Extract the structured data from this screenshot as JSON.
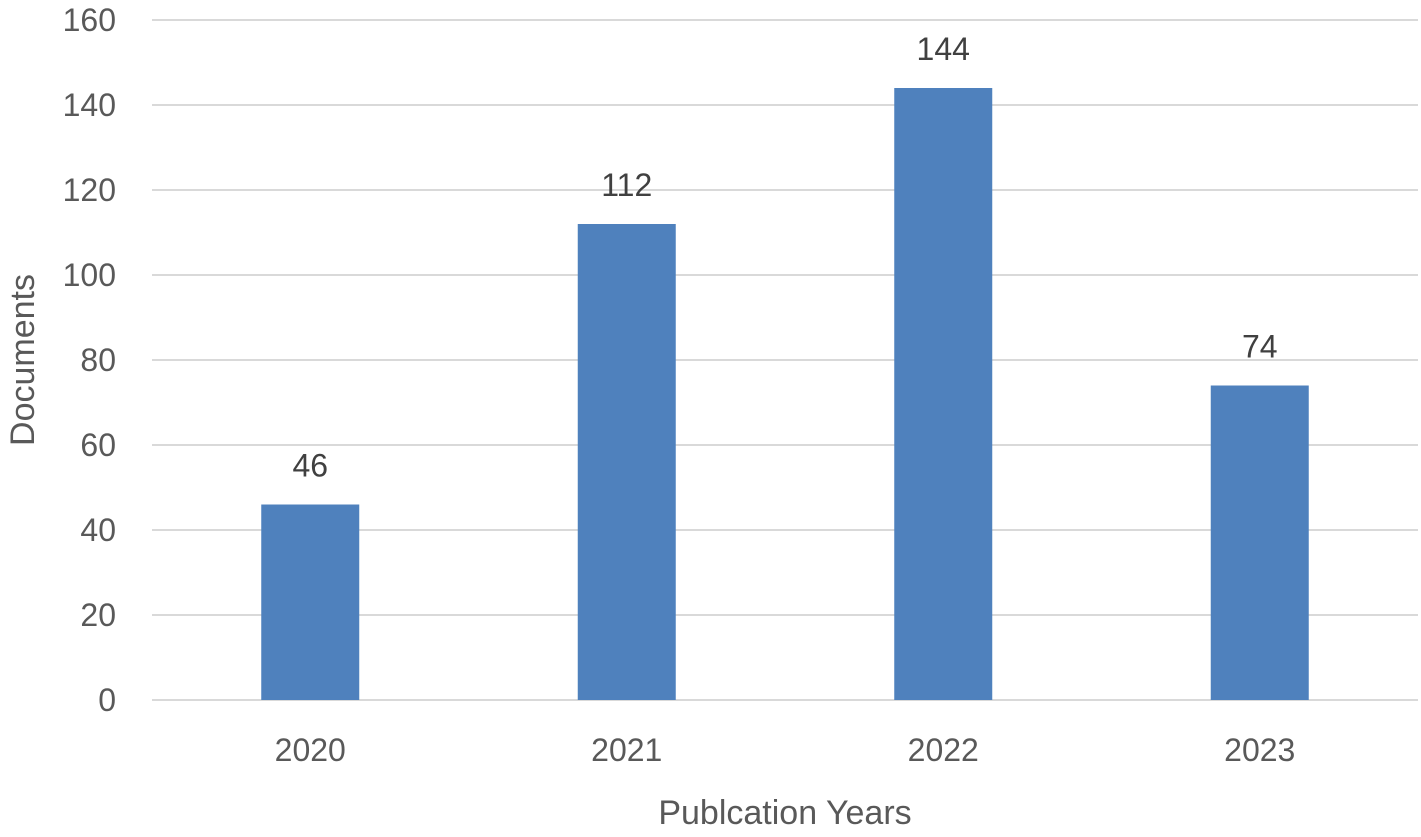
{
  "chart_data": {
    "type": "bar",
    "title": "",
    "xlabel": "Publcation Years",
    "ylabel": "Documents",
    "categories": [
      "2020",
      "2021",
      "2022",
      "2023"
    ],
    "values": [
      46,
      112,
      144,
      74
    ],
    "data_labels": [
      "46",
      "112",
      "144",
      "74"
    ],
    "ylim": [
      0,
      160
    ],
    "yticks": [
      0,
      20,
      40,
      60,
      80,
      100,
      120,
      140,
      160
    ],
    "grid": true,
    "legend": "none",
    "bar_color": "#4f81bd"
  }
}
